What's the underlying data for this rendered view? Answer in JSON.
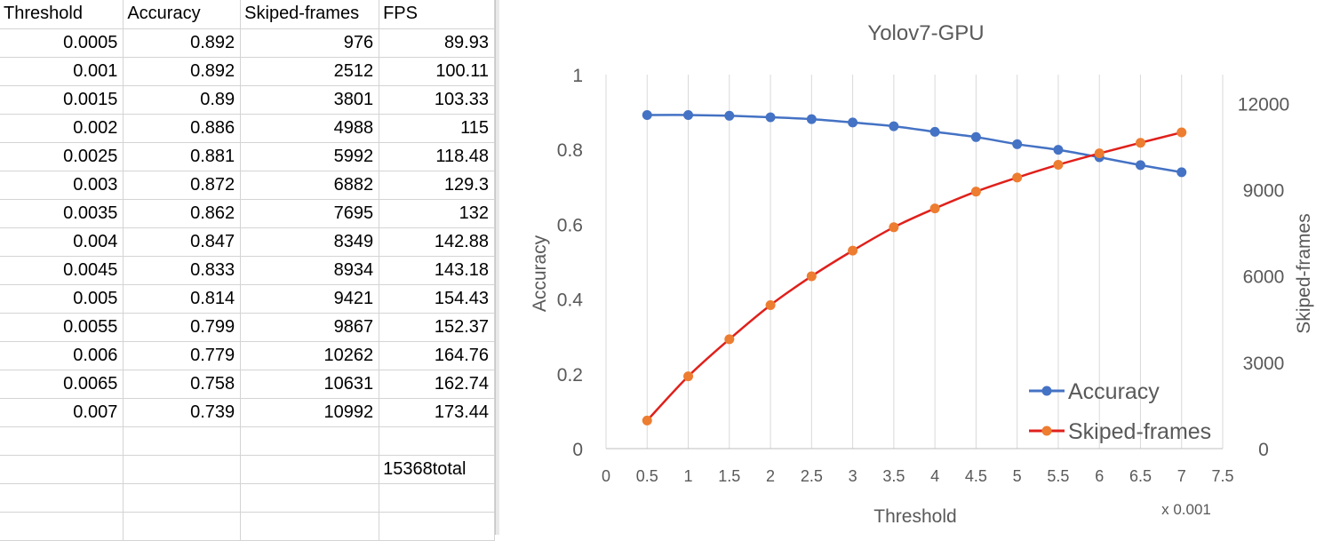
{
  "sheet": {
    "headers": [
      "Threshold",
      "Accuracy",
      "Skiped-frames",
      "FPS"
    ],
    "rows": [
      [
        "0.0005",
        "0.892",
        "976",
        "89.93"
      ],
      [
        "0.001",
        "0.892",
        "2512",
        "100.11"
      ],
      [
        "0.0015",
        "0.89",
        "3801",
        "103.33"
      ],
      [
        "0.002",
        "0.886",
        "4988",
        "115"
      ],
      [
        "0.0025",
        "0.881",
        "5992",
        "118.48"
      ],
      [
        "0.003",
        "0.872",
        "6882",
        "129.3"
      ],
      [
        "0.0035",
        "0.862",
        "7695",
        "132"
      ],
      [
        "0.004",
        "0.847",
        "8349",
        "142.88"
      ],
      [
        "0.0045",
        "0.833",
        "8934",
        "143.18"
      ],
      [
        "0.005",
        "0.814",
        "9421",
        "154.43"
      ],
      [
        "0.0055",
        "0.799",
        "9867",
        "152.37"
      ],
      [
        "0.006",
        "0.779",
        "10262",
        "164.76"
      ],
      [
        "0.0065",
        "0.758",
        "10631",
        "162.74"
      ],
      [
        "0.007",
        "0.739",
        "10992",
        "173.44"
      ]
    ],
    "total_label": "15368total"
  },
  "chart_data": {
    "type": "line",
    "title": "Yolov7-GPU",
    "xlabel": "Threshold",
    "x_multiplier_label": "x 0.001",
    "ylabel": "Accuracy",
    "y2label": "Skiped-frames",
    "x": [
      0.5,
      1,
      1.5,
      2,
      2.5,
      3,
      3.5,
      4,
      4.5,
      5,
      5.5,
      6,
      6.5,
      7
    ],
    "xlim": [
      0,
      7.5
    ],
    "xticks": [
      "0",
      "0.5",
      "1",
      "1.5",
      "2",
      "2.5",
      "3",
      "3.5",
      "4",
      "4.5",
      "5",
      "5.5",
      "6",
      "6.5",
      "7",
      "7.5"
    ],
    "ylim": [
      0,
      1
    ],
    "yticks": [
      "0",
      "0.2",
      "0.4",
      "0.6",
      "0.8",
      "1"
    ],
    "y2lim": [
      0,
      13000
    ],
    "y2ticks": [
      "0",
      "3000",
      "6000",
      "9000",
      "12000"
    ],
    "grid": "vertical",
    "legend": "bottom-right",
    "series": [
      {
        "name": "Accuracy",
        "axis": "left",
        "line_color": "#4472C4",
        "marker_color": "#4472C4",
        "values": [
          0.892,
          0.892,
          0.89,
          0.886,
          0.881,
          0.872,
          0.862,
          0.847,
          0.833,
          0.814,
          0.799,
          0.779,
          0.758,
          0.739
        ]
      },
      {
        "name": "Skiped-frames",
        "axis": "right",
        "line_color": "#E0201B",
        "marker_color": "#ED7D31",
        "values": [
          976,
          2512,
          3801,
          4988,
          5992,
          6882,
          7695,
          8349,
          8934,
          9421,
          9867,
          10262,
          10631,
          10992
        ]
      }
    ]
  }
}
